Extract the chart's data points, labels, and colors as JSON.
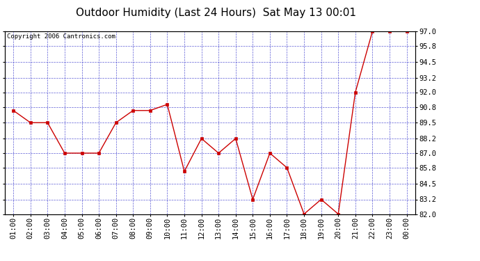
{
  "title": "Outdoor Humidity (Last 24 Hours)  Sat May 13 00:01",
  "copyright": "Copyright 2006 Cantronics.com",
  "x_labels": [
    "01:00",
    "02:00",
    "03:00",
    "04:00",
    "05:00",
    "06:00",
    "07:00",
    "08:00",
    "09:00",
    "10:00",
    "11:00",
    "12:00",
    "13:00",
    "14:00",
    "15:00",
    "16:00",
    "17:00",
    "18:00",
    "19:00",
    "20:00",
    "21:00",
    "22:00",
    "23:00",
    "00:00"
  ],
  "y_values": [
    90.5,
    89.5,
    89.5,
    87.0,
    87.0,
    87.0,
    89.5,
    90.5,
    90.5,
    91.0,
    85.5,
    88.2,
    87.0,
    88.2,
    83.2,
    87.0,
    85.8,
    82.0,
    83.2,
    82.0,
    92.0,
    97.0,
    97.0,
    97.0
  ],
  "line_color": "#cc0000",
  "marker_color": "#cc0000",
  "bg_color": "#ffffff",
  "plot_bg_color": "#ffffff",
  "grid_color": "#3333cc",
  "title_color": "#000000",
  "copyright_color": "#000000",
  "ylim": [
    82.0,
    97.0
  ],
  "yticks": [
    82.0,
    83.2,
    84.5,
    85.8,
    87.0,
    88.2,
    89.5,
    90.8,
    92.0,
    93.2,
    94.5,
    95.8,
    97.0
  ],
  "title_fontsize": 11,
  "copyright_fontsize": 6.5,
  "tick_fontsize": 7.5
}
